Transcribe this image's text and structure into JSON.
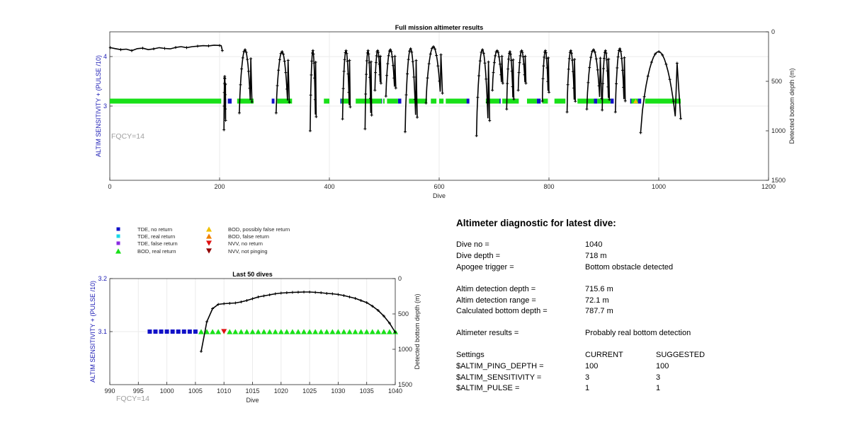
{
  "chart_data": [
    {
      "type": "scatter",
      "title": "Full mission altimeter results",
      "xlabel": "Dive",
      "ylabel": "ALTIM SENSITIVITY + (PULSE /10)",
      "y2label": "Detected bottom depth (m)",
      "xlim": [
        0,
        1200
      ],
      "ylim": [
        1.5,
        4.5
      ],
      "y2lim": [
        1500,
        0
      ],
      "xticks": [
        "0",
        "200",
        "400",
        "600",
        "800",
        "1000",
        "1200"
      ],
      "yticks": [
        "3",
        "4"
      ],
      "y2ticks": [
        "0",
        "500",
        "1000",
        "1500"
      ],
      "grid": true,
      "annotation": "FQCY=14",
      "series": [
        {
          "name": "TDE, no return",
          "color": "#1010c8",
          "segments": [
            [
              208,
              212
            ],
            [
              215,
              222
            ],
            [
              295,
              300
            ],
            [
              420,
              428
            ],
            [
              490,
              496
            ],
            [
              525,
              531
            ],
            [
              585,
              593
            ],
            [
              648,
              655
            ],
            [
              705,
              712
            ],
            [
              732,
              740
            ],
            [
              778,
              785
            ],
            [
              818,
              825
            ],
            [
              880,
              888
            ],
            [
              912,
              918
            ],
            [
              948,
              953
            ],
            [
              962,
              968
            ],
            [
              1000,
              1008
            ]
          ]
        },
        {
          "name": "BOD, real return",
          "color": "#18e018",
          "segments": [
            [
              0,
              203
            ],
            [
              232,
              262
            ],
            [
              305,
              332
            ],
            [
              390,
              400
            ],
            [
              422,
              436
            ],
            [
              448,
              495
            ],
            [
              498,
              500
            ],
            [
              505,
              525
            ],
            [
              545,
              578
            ],
            [
              585,
              595
            ],
            [
              600,
              608
            ],
            [
              612,
              650
            ],
            [
              685,
              710
            ],
            [
              715,
              745
            ],
            [
              760,
              778
            ],
            [
              788,
              798
            ],
            [
              810,
              830
            ],
            [
              852,
              882
            ],
            [
              888,
              912
            ],
            [
              950,
              962
            ],
            [
              975,
              1040
            ]
          ]
        },
        {
          "name": "BOD, possibly false return",
          "color": "#f0c000",
          "x": [
            958
          ]
        },
        {
          "name": "Detected bottom depth",
          "color": "#000000",
          "axis": "right",
          "baseline": [
            [
              1,
              160
            ],
            [
              10,
              170
            ],
            [
              20,
              180
            ],
            [
              30,
              175
            ],
            [
              40,
              190
            ],
            [
              50,
              170
            ],
            [
              60,
              165
            ],
            [
              70,
              180
            ],
            [
              80,
              172
            ],
            [
              90,
              160
            ],
            [
              100,
              168
            ],
            [
              110,
              172
            ],
            [
              120,
              158
            ],
            [
              130,
              150
            ],
            [
              140,
              160
            ],
            [
              150,
              150
            ],
            [
              160,
              145
            ],
            [
              170,
              140
            ],
            [
              180,
              142
            ],
            [
              190,
              135
            ],
            [
              200,
              138
            ],
            [
              203,
              140
            ],
            [
              205,
              190
            ]
          ],
          "dives": [
            [
              208,
              211,
              990,
              450
            ],
            [
              236,
              259,
              820,
              180
            ],
            [
              303,
              327,
              820,
              200
            ],
            [
              365,
              376,
              1000,
              190
            ],
            [
              424,
              438,
              880,
              190
            ],
            [
              465,
              477,
              980,
              190
            ],
            [
              483,
              494,
              590,
              190
            ],
            [
              503,
              521,
              650,
              180
            ],
            [
              538,
              560,
              1010,
              170
            ],
            [
              576,
              606,
              720,
              150
            ],
            [
              668,
              692,
              1050,
              180
            ],
            [
              697,
              716,
              590,
              190
            ],
            [
              723,
              736,
              780,
              200
            ],
            [
              744,
              758,
              590,
              190
            ],
            [
              788,
              800,
              700,
              190
            ],
            [
              833,
              848,
              810,
              190
            ],
            [
              869,
              896,
              780,
              180
            ],
            [
              897,
              910,
              790,
              190
            ],
            [
              921,
              939,
              810,
              170
            ],
            [
              967,
              1040,
              1020,
              200
            ]
          ]
        }
      ]
    },
    {
      "type": "scatter",
      "title": "Last 50 dives",
      "xlabel": "Dive",
      "ylabel": "ALTIM SENSITIVITY + (PULSE /10)",
      "y2label": "Detected bottom depth (m)",
      "xlim": [
        990,
        1040
      ],
      "ylim": [
        3.0,
        3.2
      ],
      "y2lim": [
        1500,
        0
      ],
      "xticks": [
        "990",
        "995",
        "1000",
        "1005",
        "1010",
        "1015",
        "1020",
        "1025",
        "1030",
        "1035",
        "1040"
      ],
      "yticks": [
        "3.1",
        "3.2"
      ],
      "y2ticks": [
        "0",
        "500",
        "1000",
        "1500"
      ],
      "grid": true,
      "annotation": "FQCY=14",
      "series": [
        {
          "name": "TDE, no return",
          "color": "#1010c8",
          "x": [
            997,
            998,
            999,
            1000,
            1001,
            1002,
            1003,
            1004,
            1005
          ],
          "y": 3.1
        },
        {
          "name": "BOD, real return",
          "color": "#18e018",
          "x": [
            1006,
            1007,
            1008,
            1009,
            1011,
            1012,
            1013,
            1014,
            1015,
            1016,
            1017,
            1018,
            1019,
            1020,
            1021,
            1022,
            1023,
            1024,
            1025,
            1026,
            1027,
            1028,
            1029,
            1030,
            1031,
            1032,
            1033,
            1034,
            1035,
            1036,
            1037,
            1038,
            1039,
            1040
          ],
          "y": 3.1
        },
        {
          "name": "NVV, no return",
          "color": "#e01010",
          "x": [
            1010
          ],
          "y": 3.1
        },
        {
          "name": "Detected bottom depth",
          "color": "#000000",
          "axis": "right",
          "x": [
            1006,
            1007,
            1008,
            1009,
            1010,
            1011,
            1012,
            1013,
            1014,
            1015,
            1016,
            1017,
            1018,
            1019,
            1020,
            1021,
            1022,
            1023,
            1024,
            1025,
            1026,
            1027,
            1028,
            1029,
            1030,
            1031,
            1032,
            1033,
            1034,
            1035,
            1036,
            1037,
            1038,
            1039,
            1040
          ],
          "y": [
            1030,
            610,
            425,
            365,
            355,
            350,
            345,
            330,
            310,
            285,
            260,
            245,
            230,
            215,
            205,
            200,
            195,
            193,
            190,
            190,
            195,
            200,
            210,
            215,
            225,
            240,
            260,
            280,
            310,
            340,
            390,
            450,
            530,
            630,
            760
          ]
        }
      ]
    }
  ],
  "legend": [
    {
      "label": "TDE, no return",
      "marker": "square",
      "color": "#1010c8"
    },
    {
      "label": "TDE, real return",
      "marker": "square",
      "color": "#18d8e8"
    },
    {
      "label": "TDE, false return",
      "marker": "square",
      "color": "#8a2be2"
    },
    {
      "label": "BOD, real return",
      "marker": "triangle-up",
      "color": "#18e018"
    },
    {
      "label": "BOD, possibly false return",
      "marker": "triangle-up",
      "color": "#f0c000"
    },
    {
      "label": "BOD, false return",
      "marker": "triangle-up",
      "color": "#f08000"
    },
    {
      "label": "NVV, no return",
      "marker": "triangle-down",
      "color": "#e01010"
    },
    {
      "label": "NVV, not pinging",
      "marker": "triangle-down",
      "color": "#900000"
    }
  ],
  "diagnostic": {
    "title": "Altimeter diagnostic for latest dive:",
    "dive_no_label": "Dive no =",
    "dive_no": "1040",
    "dive_depth_label": "Dive depth =",
    "dive_depth": "718 m",
    "apogee_label": "Apogee trigger =",
    "apogee": "Bottom obstacle detected",
    "det_depth_label": "Altim detection depth =",
    "det_depth": "715.6 m",
    "det_range_label": "Altim detection range =",
    "det_range": "72.1 m",
    "calc_depth_label": "Calculated bottom depth =",
    "calc_depth": "787.7 m",
    "results_label": "Altimeter results =",
    "results": "Probably real bottom detection",
    "settings_label": "Settings",
    "current_label": "CURRENT",
    "suggested_label": "SUGGESTED",
    "settings": [
      {
        "name": "$ALTIM_PING_DEPTH =",
        "current": "100",
        "suggested": "100"
      },
      {
        "name": "$ALTIM_SENSITIVITY =",
        "current": "3",
        "suggested": "3"
      },
      {
        "name": "$ALTIM_PULSE =",
        "current": "1",
        "suggested": "1"
      }
    ]
  }
}
